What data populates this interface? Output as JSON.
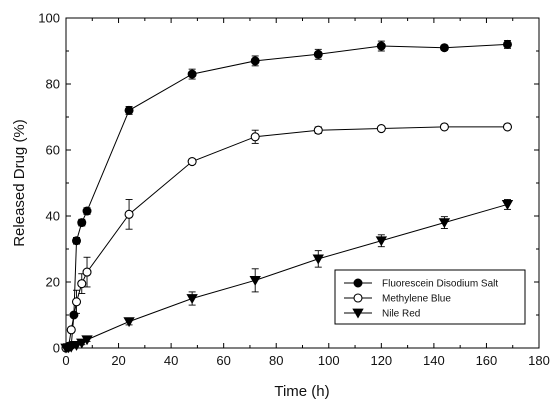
{
  "chart_data": {
    "type": "scatter",
    "xlabel": "Time (h)",
    "ylabel": "Released Drug (%)",
    "xlim": [
      0,
      180
    ],
    "ylim": [
      0,
      100
    ],
    "x_ticks": [
      "0",
      "20",
      "40",
      "60",
      "80",
      "100",
      "120",
      "140",
      "160",
      "180"
    ],
    "y_ticks": [
      "0",
      "20",
      "40",
      "60",
      "80",
      "100"
    ],
    "grid": false,
    "legend_position": "bottom-right",
    "series": [
      {
        "name": "Fluorescein Disodium Salt",
        "marker": "filled-circle",
        "color": "#000000",
        "x": [
          0,
          1,
          2,
          3,
          4,
          6,
          8,
          24,
          48,
          72,
          96,
          120,
          144,
          168
        ],
        "y": [
          0,
          0.3,
          0.8,
          10,
          32.5,
          38,
          41.5,
          72,
          83,
          87,
          89,
          91.5,
          91,
          92
        ],
        "err": [
          0,
          0,
          0,
          0,
          1,
          1,
          1,
          1.2,
          1.5,
          1.5,
          1.5,
          1.5,
          0.8,
          1.2
        ]
      },
      {
        "name": "Methylene Blue",
        "marker": "open-circle",
        "color": "#000000",
        "x": [
          0,
          1,
          2,
          4,
          6,
          8,
          24,
          48,
          72,
          96,
          120,
          144,
          168
        ],
        "y": [
          0,
          0.5,
          5.5,
          14,
          19.5,
          23,
          40.5,
          56.5,
          64,
          66,
          66.5,
          67,
          67
        ],
        "err": [
          0,
          0,
          0,
          3.5,
          3,
          4.5,
          4.5,
          0.8,
          2,
          1,
          0.5,
          0.5,
          0.5
        ]
      },
      {
        "name": "Nile Red",
        "marker": "filled-triangle-down",
        "color": "#000000",
        "x": [
          0,
          1,
          2,
          4,
          6,
          8,
          24,
          48,
          72,
          96,
          120,
          144,
          168
        ],
        "y": [
          0,
          0.1,
          0.3,
          0.8,
          1.5,
          2.5,
          8,
          15,
          20.5,
          27,
          32.5,
          38,
          43.5
        ],
        "err": [
          0,
          0,
          0,
          0,
          0.5,
          0.5,
          1,
          2,
          3.5,
          2.5,
          1.8,
          1.8,
          1.5
        ]
      }
    ]
  }
}
